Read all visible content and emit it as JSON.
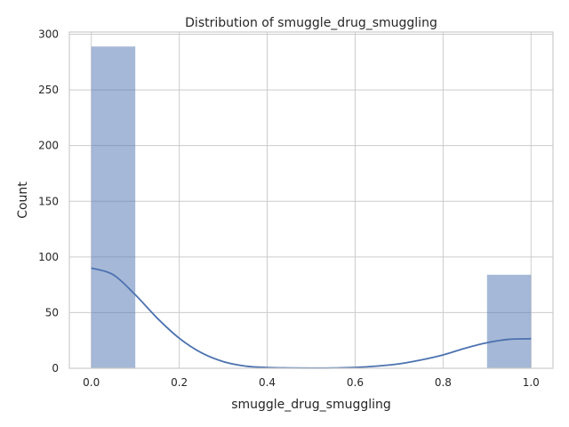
{
  "chart_data": {
    "type": "bar",
    "title": "Distribution of smuggle_drug_smuggling",
    "xlabel": "smuggle_drug_smuggling",
    "ylabel": "Count",
    "xlim": [
      -0.05,
      1.05
    ],
    "ylim": [
      0,
      302
    ],
    "xticks": [
      "0.0",
      "0.2",
      "0.4",
      "0.6",
      "0.8",
      "1.0"
    ],
    "yticks": [
      "0",
      "50",
      "100",
      "150",
      "200",
      "250",
      "300"
    ],
    "grid": true,
    "bins": [
      {
        "x0": 0.0,
        "x1": 0.1,
        "count": 289
      },
      {
        "x0": 0.1,
        "x1": 0.2,
        "count": 0
      },
      {
        "x0": 0.2,
        "x1": 0.3,
        "count": 0
      },
      {
        "x0": 0.3,
        "x1": 0.4,
        "count": 0
      },
      {
        "x0": 0.4,
        "x1": 0.5,
        "count": 0
      },
      {
        "x0": 0.5,
        "x1": 0.6,
        "count": 0
      },
      {
        "x0": 0.6,
        "x1": 0.7,
        "count": 0
      },
      {
        "x0": 0.7,
        "x1": 0.8,
        "count": 0
      },
      {
        "x0": 0.8,
        "x1": 0.9,
        "count": 0
      },
      {
        "x0": 0.9,
        "x1": 1.0,
        "count": 84
      }
    ],
    "kde": {
      "x": [
        0.0,
        0.05,
        0.1,
        0.15,
        0.2,
        0.25,
        0.3,
        0.35,
        0.4,
        0.45,
        0.5,
        0.55,
        0.6,
        0.65,
        0.7,
        0.75,
        0.8,
        0.85,
        0.9,
        0.95,
        1.0
      ],
      "y": [
        90,
        84,
        66,
        45,
        27,
        14,
        6,
        2,
        0.7,
        0.3,
        0.2,
        0.3,
        0.8,
        2,
        4,
        7.5,
        12,
        18,
        23,
        26,
        26.5
      ]
    },
    "colors": {
      "bar": "#4c72b0",
      "line": "#4c72b0",
      "grid": "#cccccc"
    }
  }
}
